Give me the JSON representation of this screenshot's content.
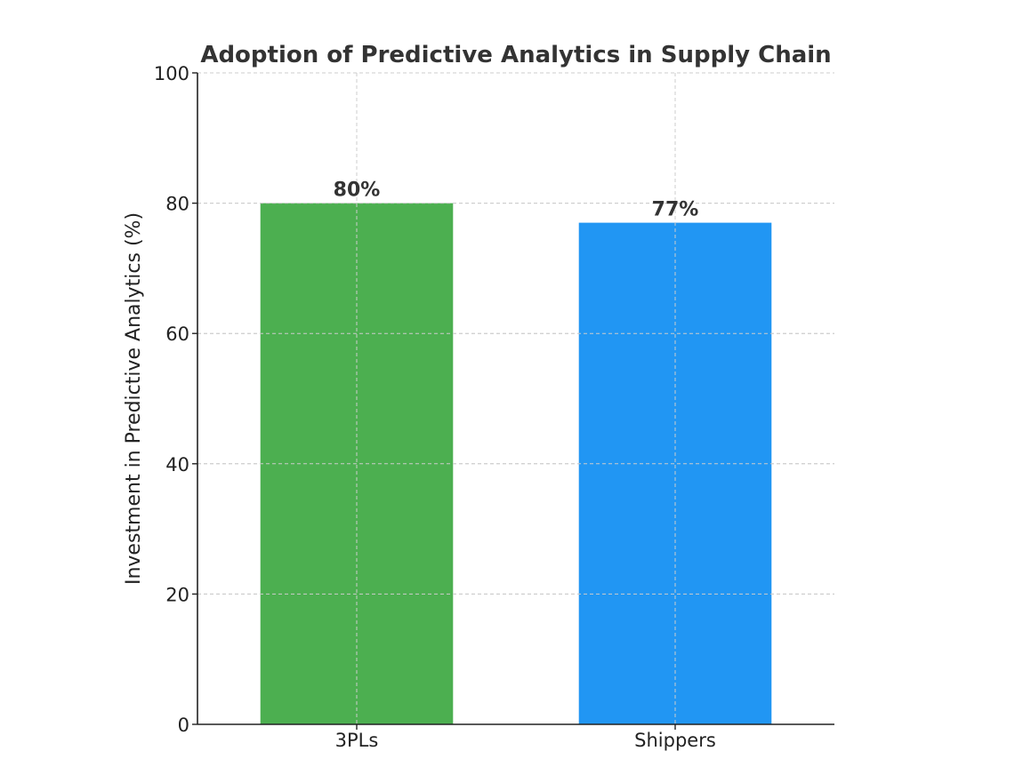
{
  "chart_data": {
    "type": "bar",
    "title": "Adoption of Predictive Analytics in Supply Chain",
    "xlabel": "",
    "ylabel": "Investment in Predictive Analytics (%)",
    "categories": [
      "3PLs",
      "Shippers"
    ],
    "values": [
      80,
      77
    ],
    "data_labels": [
      "80%",
      "77%"
    ],
    "colors": [
      "#4caf50",
      "#2196f3"
    ],
    "ylim": [
      0,
      100
    ],
    "yticks": [
      0,
      20,
      40,
      60,
      80,
      100
    ],
    "grid": true
  }
}
